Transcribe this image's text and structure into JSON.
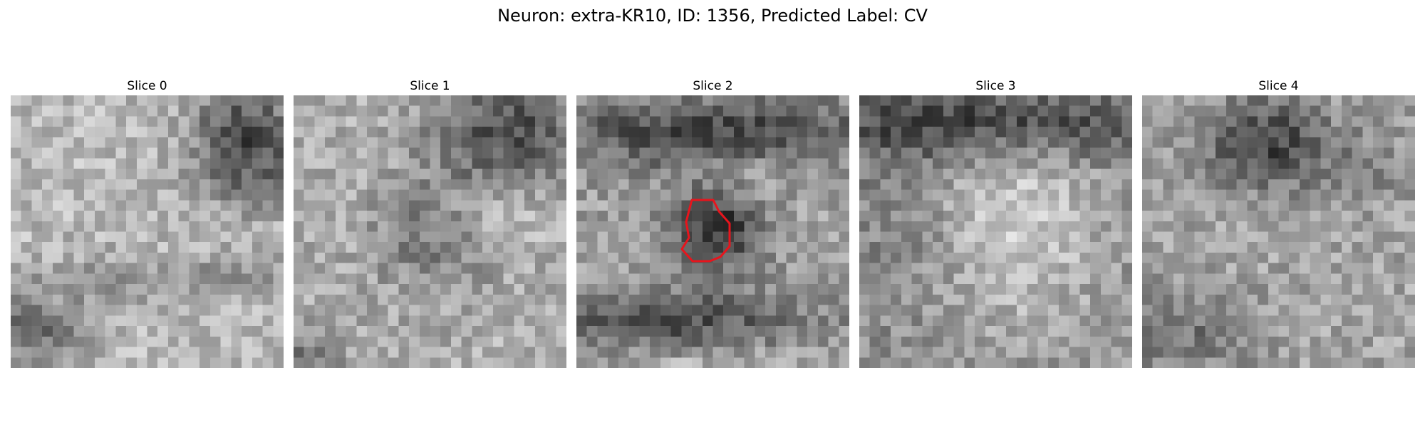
{
  "figure": {
    "title": "Neuron: extra-KR10, ID: 1356, Predicted Label: CV"
  },
  "panels": [
    {
      "title": "Slice 0",
      "has_contour": false
    },
    {
      "title": "Slice 1",
      "has_contour": false
    },
    {
      "title": "Slice 2",
      "has_contour": true
    },
    {
      "title": "Slice 3",
      "has_contour": false
    },
    {
      "title": "Slice 4",
      "has_contour": false
    }
  ],
  "colors": {
    "contour": "#e8141c",
    "background": "#ffffff"
  }
}
